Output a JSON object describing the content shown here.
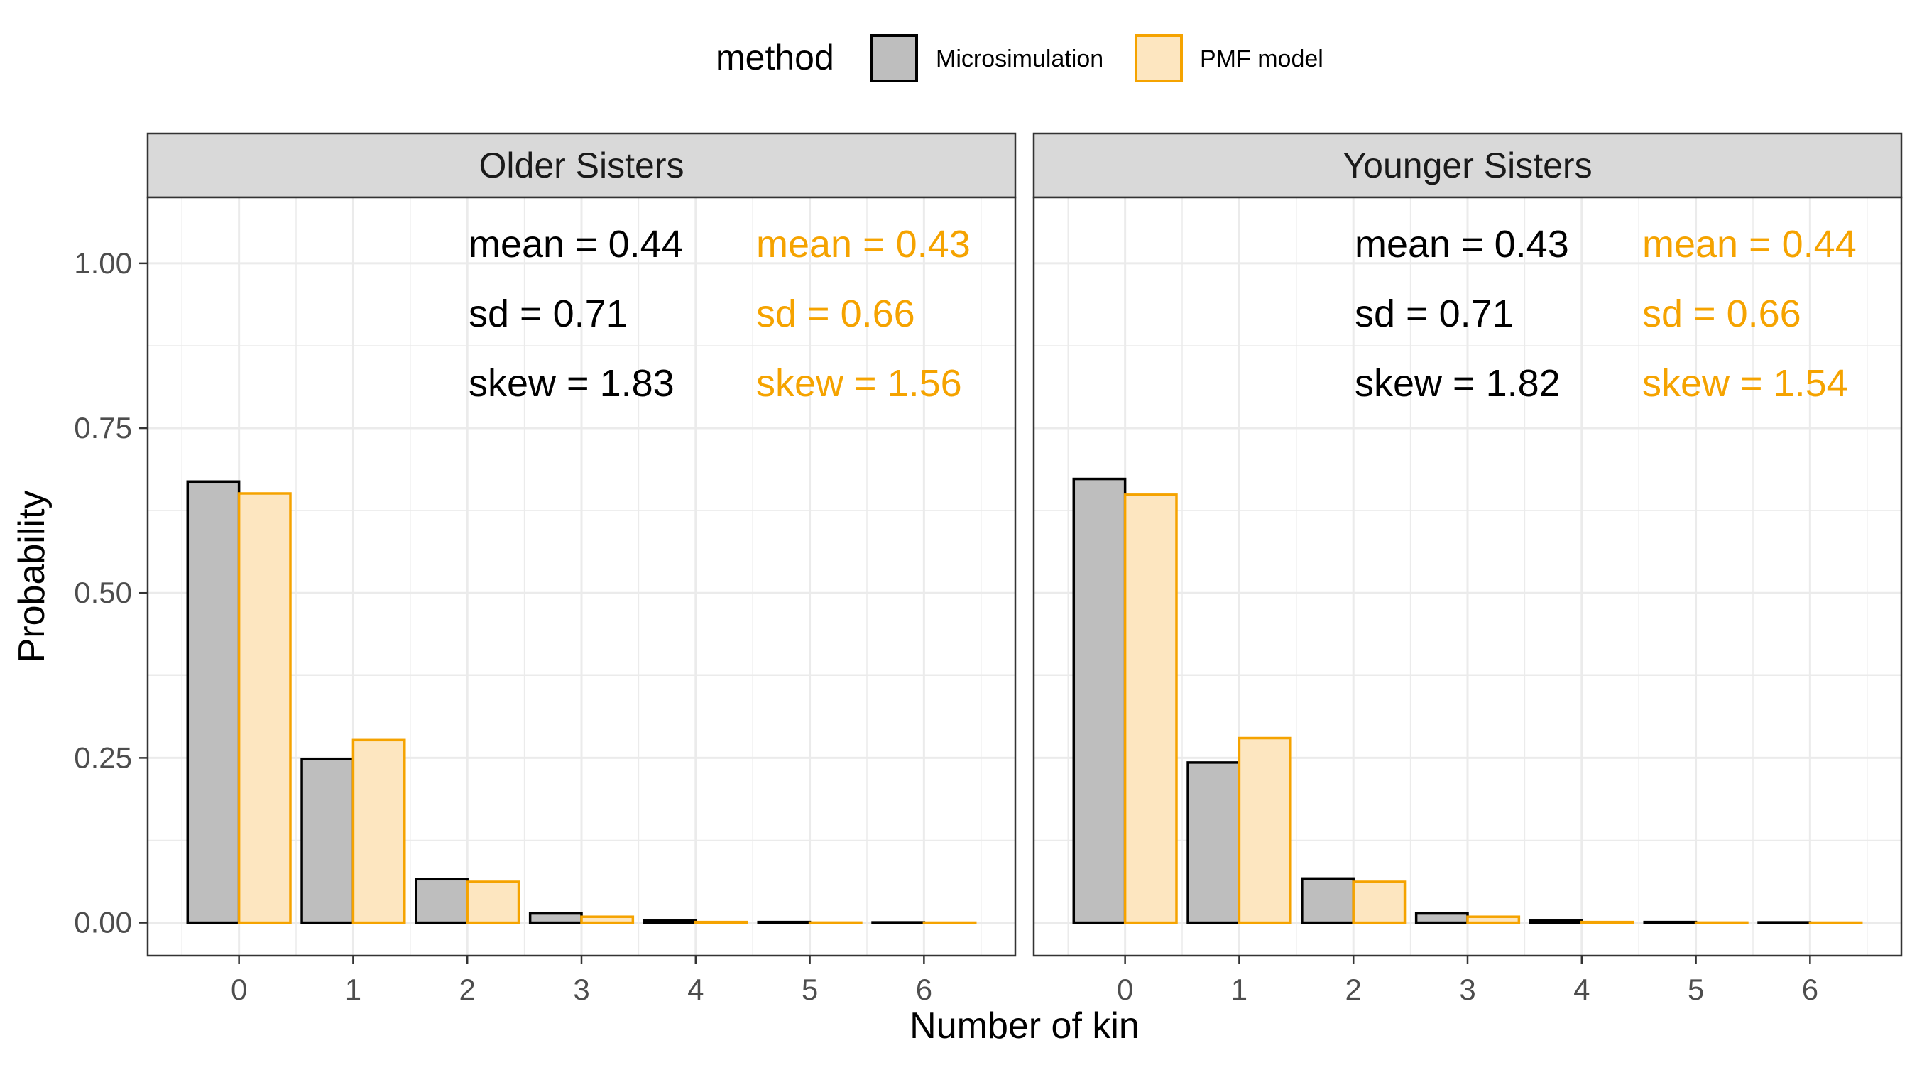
{
  "colors": {
    "microsimulation_fill": "#bebebe",
    "microsimulation_stroke": "#000000",
    "pmf_fill": "#fde6c0",
    "pmf_stroke": "#f5a300",
    "strip_fill": "#d9d9d9",
    "grid": "#ebebeb",
    "annotation_pmf": "#f5a300"
  },
  "chart_data": {
    "type": "bar",
    "xlabel": "Number of kin",
    "ylabel": "Probability",
    "ylim": [
      -0.05,
      1.1
    ],
    "yticks": [
      "0.00",
      "0.25",
      "0.50",
      "0.75",
      "1.00"
    ],
    "ytick_values": [
      0,
      0.25,
      0.5,
      0.75,
      1.0
    ],
    "categories": [
      "0",
      "1",
      "2",
      "3",
      "4",
      "5",
      "6"
    ],
    "grid": true,
    "legend": {
      "position": "top",
      "title": "method",
      "entries": [
        "Microsimulation",
        "PMF model"
      ]
    },
    "panels": [
      {
        "title": "Older Sisters",
        "series": [
          {
            "name": "Microsimulation",
            "values": [
              0.669,
              0.248,
              0.066,
              0.014,
              0.003,
              0.001,
              0.0005
            ]
          },
          {
            "name": "PMF model",
            "values": [
              0.651,
              0.277,
              0.062,
              0.009,
              0.001,
              0.0002,
              0.0001
            ]
          }
        ],
        "annotations": {
          "Microsimulation": [
            "mean = 0.44",
            "sd = 0.71",
            "skew = 1.83"
          ],
          "PMF model": [
            "mean = 0.43",
            "sd = 0.66",
            "skew = 1.56"
          ]
        }
      },
      {
        "title": "Younger Sisters",
        "series": [
          {
            "name": "Microsimulation",
            "values": [
              0.673,
              0.243,
              0.067,
              0.014,
              0.003,
              0.001,
              0.0005
            ]
          },
          {
            "name": "PMF model",
            "values": [
              0.649,
              0.28,
              0.062,
              0.009,
              0.001,
              0.0002,
              0.0001
            ]
          }
        ],
        "annotations": {
          "Microsimulation": [
            "mean = 0.43",
            "sd = 0.71",
            "skew = 1.82"
          ],
          "PMF model": [
            "mean = 0.44",
            "sd = 0.66",
            "skew = 1.54"
          ]
        }
      }
    ]
  }
}
